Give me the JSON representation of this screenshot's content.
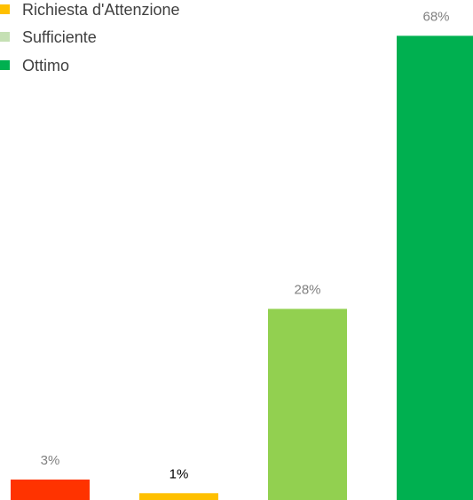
{
  "chart_data": {
    "type": "bar",
    "categories": [
      "",
      "",
      "",
      ""
    ],
    "series": [
      {
        "values": [
          3,
          1,
          28,
          68
        ],
        "colors": [
          "#ff3300",
          "#ffc000",
          "#92d050",
          "#00b050"
        ],
        "data_labels": [
          "3%",
          "1%",
          "28%",
          "68%"
        ],
        "label_colors": [
          "#808080",
          "#000000",
          "#808080",
          "#808080"
        ]
      }
    ],
    "ylim": [
      0,
      70
    ],
    "grid": false,
    "legend": {
      "placement": "top-left",
      "entries": [
        {
          "label": "Richiesta d'Attenzione",
          "color": "#ffc000"
        },
        {
          "label": "Sufficiente",
          "color": "#c5e0b4"
        },
        {
          "label": "Ottimo",
          "color": "#00b050"
        }
      ]
    }
  }
}
